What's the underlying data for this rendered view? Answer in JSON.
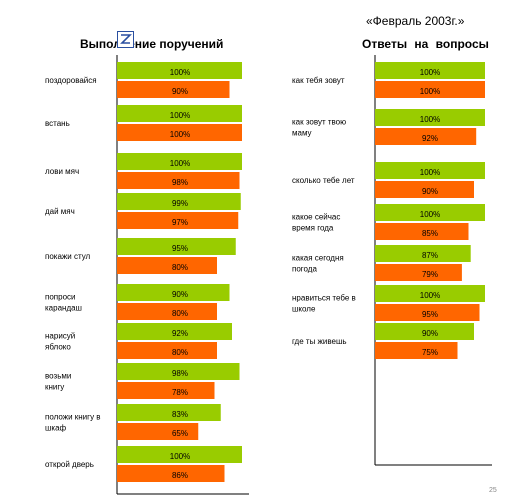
{
  "header": {
    "date_label": "«Февраль 2003г.»",
    "left_title": "Выполнение поручений",
    "right_title": "Ответы   на   вопросы",
    "page_number": "25"
  },
  "colors": {
    "green": "#99cc00",
    "orange": "#ff6600"
  },
  "chart_data": [
    {
      "type": "bar",
      "orientation": "horizontal",
      "title": "Выполнение поручений",
      "xlim": [
        0,
        100
      ],
      "categories": [
        "поздоровайся",
        "встань",
        "лови мяч",
        "дай мяч",
        "покажи стул",
        "попроси карандаш",
        "нарисуй яблоко",
        "возьми книгу",
        "положи книгу в шкаф",
        "открой дверь"
      ],
      "series": [
        {
          "color": "#99cc00",
          "values": [
            100,
            100,
            100,
            99,
            95,
            90,
            92,
            98,
            83,
            100
          ],
          "labels": [
            "100%",
            "100%",
            "100%",
            "99%",
            "95%",
            "90%",
            "92%",
            "98%",
            "83%",
            "100%"
          ]
        },
        {
          "color": "#ff6600",
          "values": [
            90,
            100,
            98,
            97,
            80,
            80,
            80,
            78,
            65,
            86
          ],
          "labels": [
            "90%",
            "100%",
            "98%",
            "97%",
            "80%",
            "80%",
            "80%",
            "78%",
            "65%",
            "86%"
          ]
        }
      ]
    },
    {
      "type": "bar",
      "orientation": "horizontal",
      "title": "Ответы   на   вопросы",
      "xlim": [
        0,
        100
      ],
      "categories": [
        "как тебя зовут",
        "как зовут твою маму",
        "сколько тебе лет",
        "какое сейчас время года",
        "какая сегодня погода",
        "нравиться тебе в школе",
        "где ты живешь"
      ],
      "series": [
        {
          "color": "#99cc00",
          "values": [
            100,
            100,
            100,
            100,
            87,
            100,
            90
          ],
          "labels": [
            "100%",
            "100%",
            "100%",
            "100%",
            "87%",
            "100%",
            "90%"
          ]
        },
        {
          "color": "#ff6600",
          "values": [
            100,
            92,
            90,
            85,
            79,
            95,
            75
          ],
          "labels": [
            "100%",
            "92%",
            "90%",
            "85%",
            "79%",
            "95%",
            "75%"
          ]
        }
      ]
    }
  ]
}
